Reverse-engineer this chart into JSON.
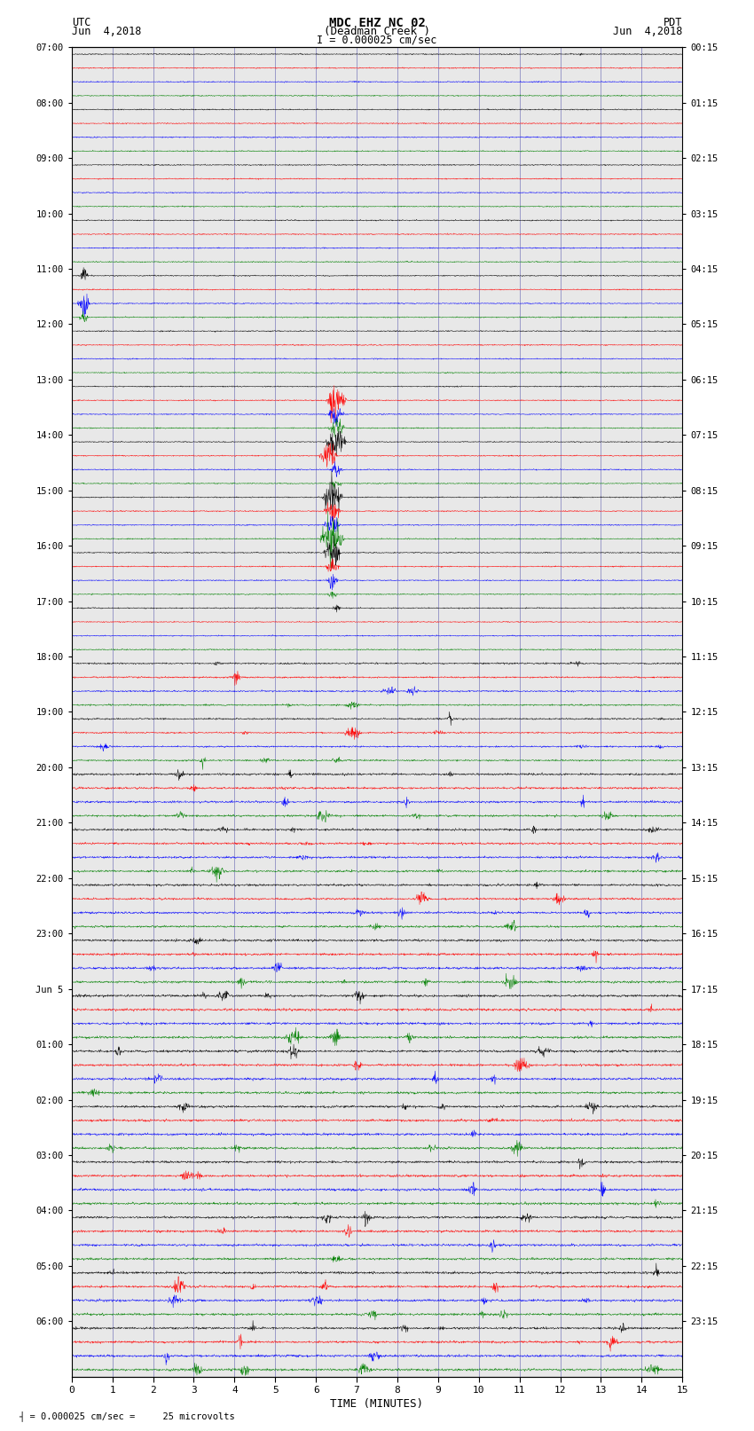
{
  "title_line1": "MDC EHZ NC 02",
  "title_line2": "(Deadman Creek )",
  "scale_text": "I = 0.000025 cm/sec",
  "left_label": "UTC",
  "left_date": "Jun  4,2018",
  "right_label": "PDT",
  "right_date": "Jun  4,2018",
  "xlabel": "TIME (MINUTES)",
  "scale_annotation": "= 0.000025 cm/sec =     25 microvolts",
  "bg_color": "#ffffff",
  "trace_colors": [
    "black",
    "red",
    "blue",
    "green"
  ],
  "grid_color": "#7777bb",
  "n_traces_total": 96,
  "n_minutes": 15,
  "left_times_utc": [
    "07:00",
    "",
    "",
    "",
    "08:00",
    "",
    "",
    "",
    "09:00",
    "",
    "",
    "",
    "10:00",
    "",
    "",
    "",
    "11:00",
    "",
    "",
    "",
    "12:00",
    "",
    "",
    "",
    "13:00",
    "",
    "",
    "",
    "14:00",
    "",
    "",
    "",
    "15:00",
    "",
    "",
    "",
    "16:00",
    "",
    "",
    "",
    "17:00",
    "",
    "",
    "",
    "18:00",
    "",
    "",
    "",
    "19:00",
    "",
    "",
    "",
    "20:00",
    "",
    "",
    "",
    "21:00",
    "",
    "",
    "",
    "22:00",
    "",
    "",
    "",
    "23:00",
    "",
    "",
    "",
    "Jun 5",
    "",
    "",
    "",
    "01:00",
    "",
    "",
    "",
    "02:00",
    "",
    "",
    "",
    "03:00",
    "",
    "",
    "",
    "04:00",
    "",
    "",
    "",
    "05:00",
    "",
    "",
    "",
    "06:00",
    "",
    "",
    ""
  ],
  "right_times_pdt": [
    "00:15",
    "",
    "",
    "",
    "01:15",
    "",
    "",
    "",
    "02:15",
    "",
    "",
    "",
    "03:15",
    "",
    "",
    "",
    "04:15",
    "",
    "",
    "",
    "05:15",
    "",
    "",
    "",
    "06:15",
    "",
    "",
    "",
    "07:15",
    "",
    "",
    "",
    "08:15",
    "",
    "",
    "",
    "09:15",
    "",
    "",
    "",
    "10:15",
    "",
    "",
    "",
    "11:15",
    "",
    "",
    "",
    "12:15",
    "",
    "",
    "",
    "13:15",
    "",
    "",
    "",
    "14:15",
    "",
    "",
    "",
    "15:15",
    "",
    "",
    "",
    "16:15",
    "",
    "",
    "",
    "17:15",
    "",
    "",
    "",
    "18:15",
    "",
    "",
    "",
    "19:15",
    "",
    "",
    "",
    "20:15",
    "",
    "",
    "",
    "21:15",
    "",
    "",
    "",
    "22:15",
    "",
    "",
    "",
    "23:15",
    "",
    "",
    ""
  ]
}
